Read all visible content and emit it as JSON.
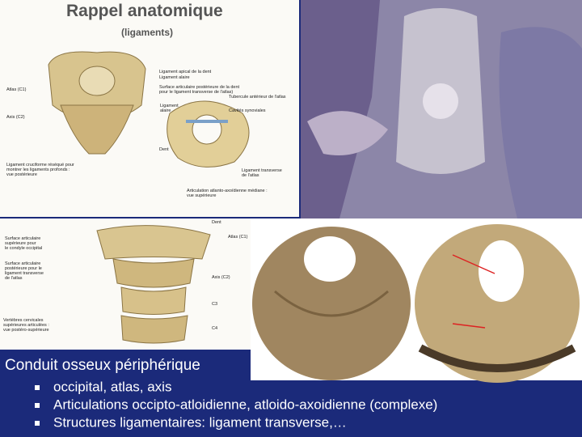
{
  "header": {
    "title": "Rappel anatomique",
    "subtitle": "(ligaments)"
  },
  "figure_top": {
    "labels": [
      "Atlas (C1)",
      "Axis (C2)",
      "Ligament apical de la dent",
      "Ligament alaire",
      "Surface articulaire postérieure de la dent",
      "pour le ligament transverse de l'atlas)",
      "Tubercule antérieur de l'atlas",
      "Cavités synoviales",
      "Ligament",
      "alaire",
      "Dent",
      "Ligament cruciforme réséqué pour",
      "montrer les ligaments profonds :",
      "vue postérieure",
      "Ligament transverse",
      "de l'atlas",
      "Articulation atlanto-axoïdienne médiane :",
      "vue supérieure"
    ]
  },
  "figure_bottom": {
    "labels": [
      "Dent",
      "Surface articulaire",
      "supérieure pour",
      "le condyle occipital",
      "Atlas (C1)",
      "Surface articulaire",
      "postérieure pour le",
      "ligament transverse",
      "de l'atlas",
      "Axis (C2)",
      "C3",
      "C4",
      "Vertèbres cervicales",
      "supérieures articulées :",
      "vue postéro-supérieure"
    ]
  },
  "content": {
    "heading": "Conduit osseux périphérique",
    "bullets": [
      "occipital, atlas, axis",
      "Articulations occipto-atloidienne, atloido-axoidienne (complexe)",
      "Structures ligamentaires: ligament transverse,…"
    ]
  }
}
